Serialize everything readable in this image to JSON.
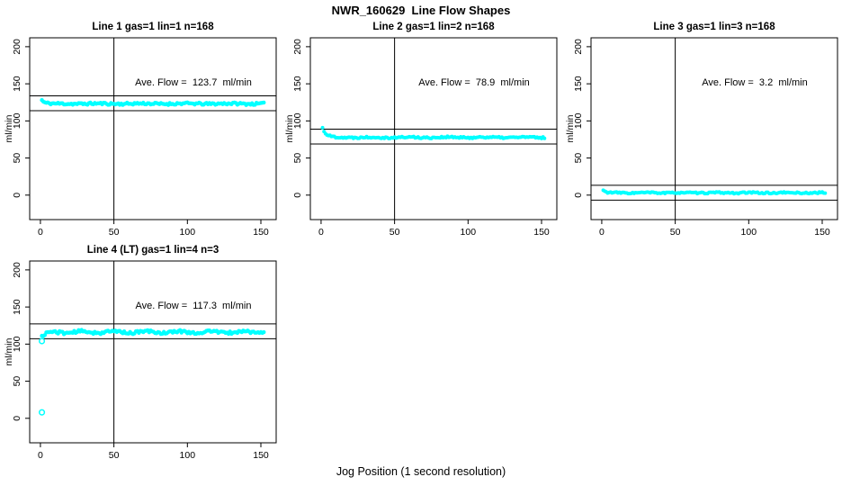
{
  "page": {
    "title": "NWR_160629  Line Flow Shapes",
    "xlabel": "Jog Position (1 second resolution)",
    "background_color": "#FFFFFF",
    "axis_color": "#000000",
    "point_color": "#00FFFF"
  },
  "chart_data": [
    {
      "type": "scatter",
      "title": "Line 1 gas=1 lin=1 n=168",
      "annotation": "Ave. Flow =  123.7  ml/min",
      "ave_flow_ml_min": 123.7,
      "ylabel": "ml/min",
      "xlim": [
        -7.3,
        160.4
      ],
      "ylim": [
        -33,
        212
      ],
      "x_ticks": [
        0,
        50,
        100,
        150
      ],
      "y_ticks": [
        0,
        50,
        100,
        150,
        200
      ],
      "grid": false,
      "vline_x": 50,
      "hlines_y": [
        133.7,
        113.7
      ],
      "series": {
        "x_start": 1,
        "x_step": 1,
        "n": 152,
        "start_y": 128,
        "settle_y": 123.2,
        "tau": 1.6,
        "noise": 1.5,
        "wobble_amp": 0.3,
        "wobble_period": 30,
        "seed": 11,
        "point_radius": 2.2
      },
      "outliers": []
    },
    {
      "type": "scatter",
      "title": "Line 2 gas=1 lin=2 n=168",
      "annotation": "Ave. Flow =  78.9  ml/min",
      "ave_flow_ml_min": 78.9,
      "ylabel": "ml/min",
      "xlim": [
        -7.3,
        160.4
      ],
      "ylim": [
        -33,
        212
      ],
      "x_ticks": [
        0,
        50,
        100,
        150
      ],
      "y_ticks": [
        0,
        50,
        100,
        150,
        200
      ],
      "grid": false,
      "vline_x": 50,
      "hlines_y": [
        88.9,
        68.9
      ],
      "series": {
        "x_start": 1,
        "x_step": 1,
        "n": 152,
        "start_y": 90.5,
        "settle_y": 77.8,
        "tau": 2.4,
        "noise": 1.2,
        "wobble_amp": 0.4,
        "wobble_period": 26,
        "seed": 22,
        "point_radius": 2.0
      },
      "outliers": []
    },
    {
      "type": "scatter",
      "title": "Line 3 gas=1 lin=3 n=168",
      "annotation": "Ave. Flow =  3.2  ml/min",
      "ave_flow_ml_min": 3.2,
      "ylabel": "ml/min",
      "xlim": [
        -7.3,
        160.4
      ],
      "ylim": [
        -33,
        212
      ],
      "x_ticks": [
        0,
        50,
        100,
        150
      ],
      "y_ticks": [
        0,
        50,
        100,
        150,
        200
      ],
      "grid": false,
      "vline_x": 50,
      "hlines_y": [
        13.2,
        -6.8
      ],
      "series": {
        "x_start": 1,
        "x_step": 1,
        "n": 152,
        "start_y": 6.5,
        "settle_y": 3.1,
        "tau": 1.5,
        "noise": 1.0,
        "wobble_amp": 0.3,
        "wobble_period": 24,
        "seed": 33,
        "point_radius": 2.0
      },
      "outliers": []
    },
    {
      "type": "scatter",
      "title": "Line 4 (LT) gas=1 lin=4 n=3",
      "annotation": "Ave. Flow =  117.3  ml/min",
      "ave_flow_ml_min": 117.3,
      "ylabel": "ml/min",
      "xlim": [
        -7.3,
        160.4
      ],
      "ylim": [
        -33,
        212
      ],
      "x_ticks": [
        0,
        50,
        100,
        150
      ],
      "y_ticks": [
        0,
        50,
        100,
        150,
        200
      ],
      "grid": false,
      "vline_x": 50,
      "hlines_y": [
        127.3,
        107.3
      ],
      "series": {
        "x_start": 1,
        "x_step": 1,
        "n": 152,
        "start_y": 110,
        "settle_y": 116.2,
        "tau": 3.0,
        "noise": 1.8,
        "wobble_amp": 1.1,
        "wobble_period": 22,
        "seed": 44,
        "point_radius": 2.2
      },
      "outliers": [
        {
          "x": 1,
          "y": 104
        },
        {
          "x": 1,
          "y": 8
        }
      ]
    }
  ]
}
